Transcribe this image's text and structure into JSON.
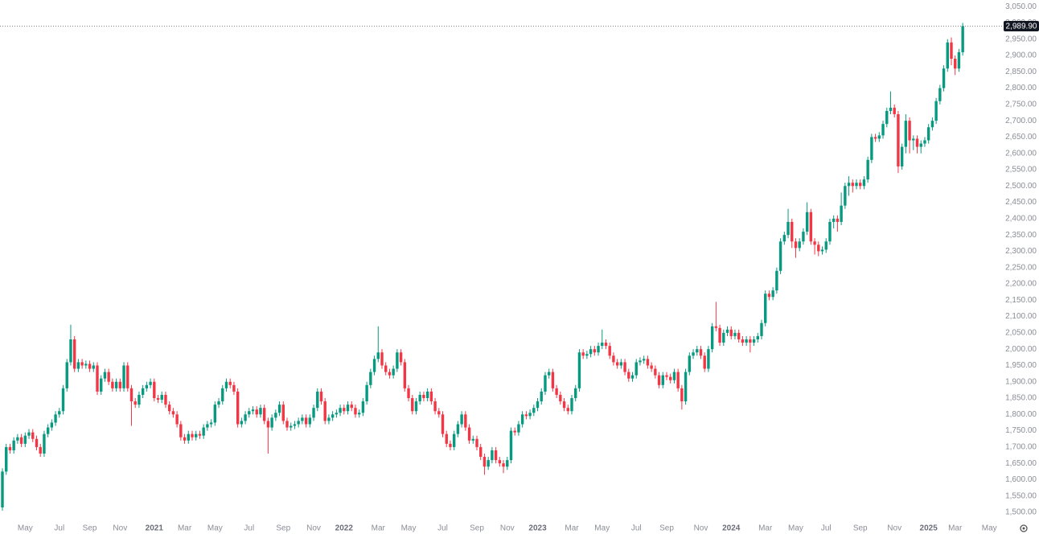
{
  "chart_data": {
    "type": "candlestick",
    "categories": [
      null,
      null,
      null,
      null,
      null,
      null,
      "May",
      null,
      null,
      null,
      null,
      null,
      null,
      null,
      null,
      "Jul",
      null,
      null,
      null,
      null,
      null,
      null,
      null,
      "Sep",
      null,
      null,
      null,
      null,
      null,
      null,
      null,
      "Nov",
      null,
      null,
      null,
      null,
      null,
      null,
      null,
      null,
      "2021",
      null,
      null,
      null,
      null,
      null,
      null,
      null,
      "Mar",
      null,
      null,
      null,
      null,
      null,
      null,
      null,
      "May",
      null,
      null,
      null,
      null,
      null,
      null,
      null,
      null,
      "Jul",
      null,
      null,
      null,
      null,
      null,
      null,
      null,
      null,
      "Sep",
      null,
      null,
      null,
      null,
      null,
      null,
      null,
      "Nov",
      null,
      null,
      null,
      null,
      null,
      null,
      null,
      "2022",
      null,
      null,
      null,
      null,
      null,
      null,
      null,
      null,
      "Mar",
      null,
      null,
      null,
      null,
      null,
      null,
      null,
      "May",
      null,
      null,
      null,
      null,
      null,
      null,
      null,
      null,
      "Jul",
      null,
      null,
      null,
      null,
      null,
      null,
      null,
      null,
      "Sep",
      null,
      null,
      null,
      null,
      null,
      null,
      null,
      "Nov",
      null,
      null,
      null,
      null,
      null,
      null,
      null,
      "2023",
      null,
      null,
      null,
      null,
      null,
      null,
      null,
      null,
      "Mar",
      null,
      null,
      null,
      null,
      null,
      null,
      null,
      "May",
      null,
      null,
      null,
      null,
      null,
      null,
      null,
      null,
      "Jul",
      null,
      null,
      null,
      null,
      null,
      null,
      null,
      "Sep",
      null,
      null,
      null,
      null,
      null,
      null,
      null,
      null,
      "Nov",
      null,
      null,
      null,
      null,
      null,
      null,
      null,
      "2024",
      null,
      null,
      null,
      null,
      null,
      null,
      null,
      null,
      "Mar",
      null,
      null,
      null,
      null,
      null,
      null,
      null,
      "May",
      null,
      null,
      null,
      null,
      null,
      null,
      null,
      "Jul",
      null,
      null,
      null,
      null,
      null,
      null,
      null,
      null,
      "Sep",
      null,
      null,
      null,
      null,
      null,
      null,
      null,
      null,
      "Nov",
      null,
      null,
      null,
      null,
      null,
      null,
      null,
      null,
      "2025",
      null,
      null,
      null,
      null,
      null,
      null,
      "Mar",
      null,
      null,
      null,
      null,
      null,
      null,
      null,
      null,
      "May"
    ],
    "open": [
      1515,
      1625,
      1700,
      1690,
      1720,
      1730,
      1710,
      1735,
      1745,
      1725,
      1700,
      1680,
      1740,
      1760,
      1775,
      1800,
      1810,
      1880,
      1960,
      2030,
      1940,
      1960,
      1950,
      1955,
      1940,
      1950,
      1870,
      1910,
      1930,
      1900,
      1880,
      1900,
      1880,
      1950,
      1880,
      1840,
      1830,
      1860,
      1880,
      1890,
      1900,
      1850,
      1845,
      1860,
      1830,
      1810,
      1800,
      1770,
      1730,
      1720,
      1740,
      1730,
      1740,
      1735,
      1760,
      1770,
      1775,
      1830,
      1840,
      1880,
      1900,
      1890,
      1870,
      1770,
      1780,
      1800,
      1810,
      1815,
      1800,
      1820,
      1780,
      1760,
      1790,
      1805,
      1830,
      1780,
      1760,
      1765,
      1770,
      1780,
      1790,
      1770,
      1790,
      1820,
      1870,
      1840,
      1780,
      1790,
      1800,
      1805,
      1820,
      1810,
      1830,
      1820,
      1800,
      1805,
      1840,
      1890,
      1930,
      1970,
      1990,
      1950,
      1930,
      1920,
      1940,
      1990,
      1960,
      1880,
      1850,
      1810,
      1840,
      1860,
      1850,
      1870,
      1840,
      1810,
      1800,
      1740,
      1710,
      1700,
      1740,
      1770,
      1800,
      1760,
      1720,
      1725,
      1700,
      1670,
      1640,
      1660,
      1690,
      1660,
      1650,
      1640,
      1660,
      1750,
      1745,
      1770,
      1800,
      1795,
      1805,
      1820,
      1840,
      1870,
      1920,
      1930,
      1880,
      1860,
      1840,
      1820,
      1810,
      1850,
      1880,
      1990,
      1980,
      1985,
      2000,
      1990,
      2010,
      2020,
      2010,
      1980,
      1960,
      1950,
      1960,
      1930,
      1910,
      1920,
      1960,
      1965,
      1970,
      1950,
      1940,
      1920,
      1890,
      1920,
      1915,
      1905,
      1930,
      1880,
      1840,
      1930,
      1980,
      1990,
      2000,
      1980,
      1940,
      2000,
      2070,
      2065,
      2020,
      2050,
      2060,
      2040,
      2050,
      2030,
      2020,
      2030,
      2020,
      2030,
      2040,
      2080,
      2170,
      2160,
      2180,
      2240,
      2330,
      2350,
      2390,
      2330,
      2310,
      2330,
      2360,
      2420,
      2330,
      2320,
      2300,
      2305,
      2330,
      2390,
      2400,
      2390,
      2440,
      2500,
      2510,
      2500,
      2510,
      2500,
      2520,
      2580,
      2650,
      2645,
      2655,
      2690,
      2730,
      2740,
      2720,
      2560,
      2620,
      2700,
      2640,
      2645,
      2620,
      2630,
      2640,
      2680,
      2700,
      2760,
      2800,
      2860,
      2940,
      2890,
      2860,
      2910,
      null,
      null,
      null,
      null,
      null,
      null,
      null
    ],
    "high": [
      1635,
      1710,
      1710,
      1730,
      1740,
      1740,
      1745,
      1755,
      1755,
      1735,
      1710,
      1750,
      1770,
      1785,
      1810,
      1820,
      1890,
      1970,
      2075,
      2040,
      1970,
      1970,
      1965,
      1965,
      1960,
      1960,
      1920,
      1940,
      1940,
      1910,
      1910,
      1910,
      1960,
      1960,
      1890,
      1850,
      1870,
      1890,
      1900,
      1910,
      1910,
      1860,
      1870,
      1870,
      1840,
      1820,
      1810,
      1780,
      1740,
      1750,
      1750,
      1750,
      1750,
      1770,
      1780,
      1785,
      1840,
      1850,
      1890,
      1910,
      1910,
      1900,
      1880,
      1790,
      1810,
      1820,
      1825,
      1825,
      1830,
      1830,
      1790,
      1800,
      1815,
      1840,
      1840,
      1790,
      1775,
      1780,
      1790,
      1800,
      1800,
      1800,
      1830,
      1880,
      1880,
      1850,
      1800,
      1810,
      1815,
      1830,
      1830,
      1840,
      1840,
      1830,
      1815,
      1850,
      1900,
      1940,
      1980,
      2070,
      2000,
      1960,
      1940,
      1950,
      2000,
      2000,
      1970,
      1890,
      1860,
      1850,
      1870,
      1870,
      1880,
      1880,
      1850,
      1820,
      1810,
      1750,
      1720,
      1750,
      1780,
      1810,
      1810,
      1770,
      1735,
      1735,
      1710,
      1680,
      1670,
      1700,
      1700,
      1670,
      1660,
      1670,
      1760,
      1760,
      1780,
      1810,
      1810,
      1815,
      1830,
      1850,
      1880,
      1930,
      1940,
      1940,
      1890,
      1870,
      1850,
      1830,
      1860,
      1890,
      2000,
      2000,
      1995,
      2010,
      2010,
      2020,
      2060,
      2030,
      2020,
      1990,
      1970,
      1970,
      1970,
      1940,
      1930,
      1970,
      1975,
      1980,
      1980,
      1960,
      1950,
      1930,
      1930,
      1930,
      1925,
      1940,
      1940,
      1890,
      1940,
      1990,
      2000,
      2010,
      2010,
      1990,
      2010,
      2080,
      2145,
      2075,
      2060,
      2070,
      2070,
      2060,
      2060,
      2040,
      2040,
      2040,
      2040,
      2050,
      2090,
      2180,
      2180,
      2190,
      2250,
      2340,
      2360,
      2430,
      2400,
      2340,
      2340,
      2370,
      2450,
      2430,
      2340,
      2330,
      2315,
      2340,
      2400,
      2410,
      2410,
      2480,
      2510,
      2530,
      2520,
      2520,
      2520,
      2530,
      2590,
      2660,
      2660,
      2665,
      2700,
      2740,
      2790,
      2750,
      2730,
      2630,
      2720,
      2710,
      2655,
      2655,
      2640,
      2650,
      2690,
      2710,
      2770,
      2810,
      2870,
      2950,
      2955,
      2900,
      2920,
      3000,
      null,
      null,
      null,
      null,
      null,
      null,
      null
    ],
    "low": [
      1505,
      1615,
      1680,
      1680,
      1710,
      1700,
      1700,
      1725,
      1715,
      1690,
      1670,
      1670,
      1730,
      1750,
      1765,
      1790,
      1800,
      1870,
      1950,
      1930,
      1930,
      1940,
      1940,
      1930,
      1930,
      1860,
      1860,
      1900,
      1890,
      1870,
      1870,
      1870,
      1870,
      1870,
      1765,
      1820,
      1820,
      1850,
      1870,
      1880,
      1840,
      1835,
      1835,
      1820,
      1800,
      1790,
      1760,
      1720,
      1710,
      1710,
      1720,
      1720,
      1725,
      1725,
      1750,
      1760,
      1765,
      1820,
      1830,
      1870,
      1880,
      1860,
      1760,
      1760,
      1770,
      1790,
      1800,
      1790,
      1790,
      1770,
      1680,
      1750,
      1780,
      1795,
      1770,
      1750,
      1750,
      1755,
      1760,
      1770,
      1760,
      1760,
      1780,
      1810,
      1830,
      1770,
      1770,
      1780,
      1790,
      1795,
      1800,
      1800,
      1810,
      1790,
      1790,
      1795,
      1830,
      1880,
      1920,
      1960,
      1940,
      1920,
      1910,
      1910,
      1930,
      1950,
      1870,
      1840,
      1800,
      1800,
      1830,
      1840,
      1840,
      1830,
      1800,
      1790,
      1730,
      1700,
      1690,
      1690,
      1730,
      1760,
      1750,
      1710,
      1710,
      1690,
      1660,
      1615,
      1630,
      1650,
      1650,
      1640,
      1620,
      1630,
      1650,
      1735,
      1735,
      1760,
      1785,
      1785,
      1795,
      1810,
      1830,
      1860,
      1910,
      1870,
      1850,
      1830,
      1810,
      1800,
      1800,
      1840,
      1870,
      1970,
      1970,
      1975,
      1980,
      1980,
      2000,
      2000,
      1970,
      1950,
      1940,
      1940,
      1920,
      1900,
      1900,
      1910,
      1950,
      1955,
      1940,
      1930,
      1910,
      1880,
      1880,
      1905,
      1895,
      1895,
      1870,
      1815,
      1830,
      1920,
      1970,
      1980,
      1970,
      1930,
      1930,
      1990,
      2055,
      2010,
      2010,
      2040,
      2030,
      2030,
      2020,
      2010,
      2010,
      1990,
      2010,
      2020,
      2030,
      2070,
      2150,
      2150,
      2170,
      2230,
      2320,
      2340,
      2310,
      2280,
      2300,
      2320,
      2350,
      2320,
      2290,
      2285,
      2290,
      2295,
      2320,
      2370,
      2360,
      2380,
      2430,
      2470,
      2480,
      2490,
      2490,
      2490,
      2510,
      2570,
      2635,
      2635,
      2645,
      2680,
      2720,
      2710,
      2540,
      2550,
      2600,
      2600,
      2610,
      2600,
      2600,
      2620,
      2630,
      2670,
      2690,
      2750,
      2790,
      2850,
      2870,
      2840,
      2850,
      2900,
      null,
      null,
      null,
      null,
      null,
      null,
      null
    ],
    "close": [
      1625,
      1700,
      1690,
      1720,
      1730,
      1710,
      1735,
      1745,
      1725,
      1700,
      1680,
      1740,
      1760,
      1775,
      1800,
      1810,
      1880,
      1960,
      2030,
      1940,
      1960,
      1950,
      1955,
      1940,
      1950,
      1870,
      1910,
      1930,
      1900,
      1880,
      1900,
      1880,
      1950,
      1880,
      1840,
      1830,
      1860,
      1880,
      1890,
      1900,
      1850,
      1845,
      1860,
      1830,
      1810,
      1800,
      1770,
      1730,
      1720,
      1740,
      1730,
      1740,
      1735,
      1760,
      1770,
      1775,
      1830,
      1840,
      1880,
      1900,
      1890,
      1870,
      1770,
      1780,
      1800,
      1810,
      1815,
      1800,
      1820,
      1780,
      1760,
      1790,
      1805,
      1830,
      1780,
      1760,
      1765,
      1770,
      1780,
      1790,
      1770,
      1790,
      1820,
      1870,
      1840,
      1780,
      1790,
      1800,
      1805,
      1820,
      1810,
      1830,
      1820,
      1800,
      1805,
      1840,
      1890,
      1930,
      1970,
      1990,
      1950,
      1930,
      1920,
      1940,
      1990,
      1960,
      1880,
      1850,
      1810,
      1840,
      1860,
      1850,
      1870,
      1840,
      1810,
      1800,
      1740,
      1710,
      1700,
      1740,
      1770,
      1800,
      1760,
      1720,
      1725,
      1700,
      1670,
      1640,
      1660,
      1690,
      1660,
      1650,
      1640,
      1660,
      1750,
      1745,
      1770,
      1800,
      1795,
      1805,
      1820,
      1840,
      1870,
      1920,
      1930,
      1880,
      1860,
      1840,
      1820,
      1810,
      1850,
      1880,
      1990,
      1980,
      1985,
      2000,
      1990,
      2010,
      2020,
      2010,
      1980,
      1960,
      1950,
      1960,
      1930,
      1910,
      1920,
      1960,
      1965,
      1970,
      1950,
      1940,
      1920,
      1890,
      1920,
      1915,
      1905,
      1930,
      1880,
      1840,
      1930,
      1980,
      1990,
      2000,
      1980,
      1940,
      2000,
      2070,
      2065,
      2020,
      2050,
      2060,
      2040,
      2050,
      2030,
      2020,
      2030,
      2020,
      2030,
      2040,
      2080,
      2170,
      2160,
      2180,
      2240,
      2330,
      2350,
      2390,
      2330,
      2310,
      2330,
      2360,
      2420,
      2330,
      2320,
      2300,
      2305,
      2330,
      2390,
      2400,
      2390,
      2440,
      2500,
      2510,
      2500,
      2510,
      2500,
      2520,
      2580,
      2650,
      2645,
      2655,
      2690,
      2730,
      2740,
      2720,
      2560,
      2620,
      2700,
      2640,
      2645,
      2620,
      2630,
      2640,
      2680,
      2700,
      2760,
      2800,
      2860,
      2940,
      2890,
      2860,
      2910,
      2989.9,
      null,
      null,
      null,
      null,
      null,
      null,
      null
    ],
    "up_color": "#089981",
    "down_color": "#f23645",
    "ylim": [
      1473,
      3070
    ],
    "yticks": [
      {
        "value": 1500,
        "label": "1,500.00"
      },
      {
        "value": 1550,
        "label": "1,550.00"
      },
      {
        "value": 1600,
        "label": "1,600.00"
      },
      {
        "value": 1650,
        "label": "1,650.00"
      },
      {
        "value": 1700,
        "label": "1,700.00"
      },
      {
        "value": 1750,
        "label": "1,750.00"
      },
      {
        "value": 1800,
        "label": "1,800.00"
      },
      {
        "value": 1850,
        "label": "1,850.00"
      },
      {
        "value": 1900,
        "label": "1,900.00"
      },
      {
        "value": 1950,
        "label": "1,950.00"
      },
      {
        "value": 2000,
        "label": "2,000.00"
      },
      {
        "value": 2050,
        "label": "2,050.00"
      },
      {
        "value": 2100,
        "label": "2,100.00"
      },
      {
        "value": 2150,
        "label": "2,150.00"
      },
      {
        "value": 2200,
        "label": "2,200.00"
      },
      {
        "value": 2250,
        "label": "2,250.00"
      },
      {
        "value": 2300,
        "label": "2,300.00"
      },
      {
        "value": 2350,
        "label": "2,350.00"
      },
      {
        "value": 2400,
        "label": "2,400.00"
      },
      {
        "value": 2450,
        "label": "2,450.00"
      },
      {
        "value": 2500,
        "label": "2,500.00"
      },
      {
        "value": 2550,
        "label": "2,550.00"
      },
      {
        "value": 2600,
        "label": "2,600.00"
      },
      {
        "value": 2650,
        "label": "2,650.00"
      },
      {
        "value": 2700,
        "label": "2,700.00"
      },
      {
        "value": 2750,
        "label": "2,750.00"
      },
      {
        "value": 2800,
        "label": "2,800.00"
      },
      {
        "value": 2850,
        "label": "2,850.00"
      },
      {
        "value": 2900,
        "label": "2,900.00"
      },
      {
        "value": 2950,
        "label": "2,950.00"
      },
      {
        "value": 3000,
        "label": "3,000.00"
      },
      {
        "value": 3050,
        "label": "3,050.00"
      }
    ],
    "grid": false,
    "last_price": {
      "value": 2989.9,
      "label": "2,989.90"
    }
  }
}
